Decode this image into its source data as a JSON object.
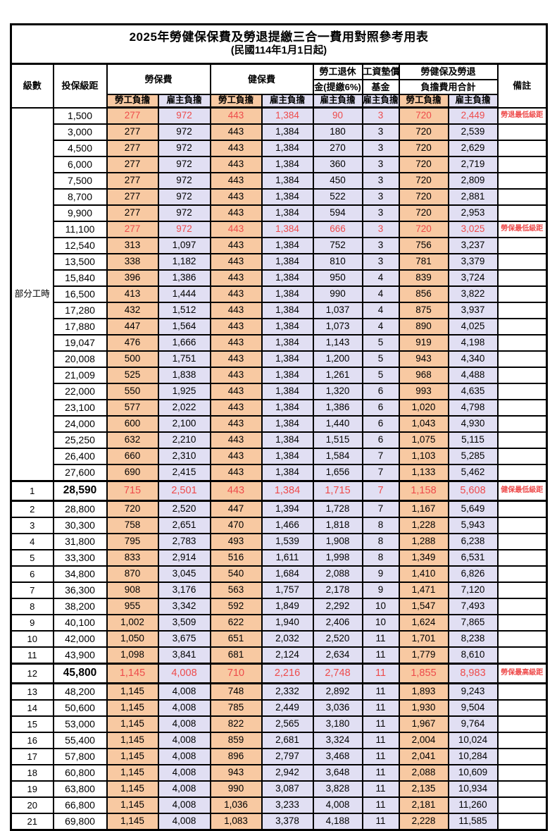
{
  "title": "2025年勞健保保費及勞退提繳三合一費用對照參考用表",
  "subtitle": "(民國114年1月1日起)",
  "colors": {
    "employee_share_bg": "#f8c9a2",
    "employer_share_bg": "#e1dff3",
    "highlight_red": "#ee4b4b",
    "border": "#000000"
  },
  "header": {
    "level": "級數",
    "bracket": "投保級距",
    "labor_insurance": "勞保費",
    "health_insurance": "健保費",
    "pension_line1": "勞工退休",
    "pension_line2": "金(提繳6%)",
    "wage_fund_line1": "工資墊償",
    "wage_fund_line2": "基金",
    "total_line1": "勞健保及勞退",
    "total_line2": "負擔費用合計",
    "remark": "備註",
    "employee_share": "勞工負擔",
    "employer_share": "雇主負擔"
  },
  "part_time": {
    "label": "部分工時",
    "rowspan": 23
  },
  "column_kinds": [
    "emp",
    "er",
    "emp",
    "er",
    "er",
    "er",
    "emp",
    "er"
  ],
  "rows": [
    {
      "lv": "",
      "br": "1,500",
      "c": [
        "277",
        "972",
        "443",
        "1,384",
        "90",
        "3",
        "720",
        "2,449"
      ],
      "rm": "勞退最低級距",
      "hl": true,
      "big": false
    },
    {
      "lv": "",
      "br": "3,000",
      "c": [
        "277",
        "972",
        "443",
        "1,384",
        "180",
        "3",
        "720",
        "2,539"
      ],
      "rm": "",
      "hl": false,
      "big": false
    },
    {
      "lv": "",
      "br": "4,500",
      "c": [
        "277",
        "972",
        "443",
        "1,384",
        "270",
        "3",
        "720",
        "2,629"
      ],
      "rm": "",
      "hl": false,
      "big": false
    },
    {
      "lv": "",
      "br": "6,000",
      "c": [
        "277",
        "972",
        "443",
        "1,384",
        "360",
        "3",
        "720",
        "2,719"
      ],
      "rm": "",
      "hl": false,
      "big": false
    },
    {
      "lv": "",
      "br": "7,500",
      "c": [
        "277",
        "972",
        "443",
        "1,384",
        "450",
        "3",
        "720",
        "2,809"
      ],
      "rm": "",
      "hl": false,
      "big": false
    },
    {
      "lv": "",
      "br": "8,700",
      "c": [
        "277",
        "972",
        "443",
        "1,384",
        "522",
        "3",
        "720",
        "2,881"
      ],
      "rm": "",
      "hl": false,
      "big": false
    },
    {
      "lv": "",
      "br": "9,900",
      "c": [
        "277",
        "972",
        "443",
        "1,384",
        "594",
        "3",
        "720",
        "2,953"
      ],
      "rm": "",
      "hl": false,
      "big": false
    },
    {
      "lv": "",
      "br": "11,100",
      "c": [
        "277",
        "972",
        "443",
        "1,384",
        "666",
        "3",
        "720",
        "3,025"
      ],
      "rm": "勞保最低級距",
      "hl": true,
      "big": false
    },
    {
      "lv": "",
      "br": "12,540",
      "c": [
        "313",
        "1,097",
        "443",
        "1,384",
        "752",
        "3",
        "756",
        "3,237"
      ],
      "rm": "",
      "hl": false,
      "big": false
    },
    {
      "lv": "",
      "br": "13,500",
      "c": [
        "338",
        "1,182",
        "443",
        "1,384",
        "810",
        "3",
        "781",
        "3,379"
      ],
      "rm": "",
      "hl": false,
      "big": false
    },
    {
      "lv": "",
      "br": "15,840",
      "c": [
        "396",
        "1,386",
        "443",
        "1,384",
        "950",
        "4",
        "839",
        "3,724"
      ],
      "rm": "",
      "hl": false,
      "big": false
    },
    {
      "lv": "",
      "br": "16,500",
      "c": [
        "413",
        "1,444",
        "443",
        "1,384",
        "990",
        "4",
        "856",
        "3,822"
      ],
      "rm": "",
      "hl": false,
      "big": false
    },
    {
      "lv": "",
      "br": "17,280",
      "c": [
        "432",
        "1,512",
        "443",
        "1,384",
        "1,037",
        "4",
        "875",
        "3,937"
      ],
      "rm": "",
      "hl": false,
      "big": false
    },
    {
      "lv": "",
      "br": "17,880",
      "c": [
        "447",
        "1,564",
        "443",
        "1,384",
        "1,073",
        "4",
        "890",
        "4,025"
      ],
      "rm": "",
      "hl": false,
      "big": false
    },
    {
      "lv": "",
      "br": "19,047",
      "c": [
        "476",
        "1,666",
        "443",
        "1,384",
        "1,143",
        "5",
        "919",
        "4,198"
      ],
      "rm": "",
      "hl": false,
      "big": false
    },
    {
      "lv": "",
      "br": "20,008",
      "c": [
        "500",
        "1,751",
        "443",
        "1,384",
        "1,200",
        "5",
        "943",
        "4,340"
      ],
      "rm": "",
      "hl": false,
      "big": false
    },
    {
      "lv": "",
      "br": "21,009",
      "c": [
        "525",
        "1,838",
        "443",
        "1,384",
        "1,261",
        "5",
        "968",
        "4,488"
      ],
      "rm": "",
      "hl": false,
      "big": false
    },
    {
      "lv": "",
      "br": "22,000",
      "c": [
        "550",
        "1,925",
        "443",
        "1,384",
        "1,320",
        "6",
        "993",
        "4,635"
      ],
      "rm": "",
      "hl": false,
      "big": false
    },
    {
      "lv": "",
      "br": "23,100",
      "c": [
        "577",
        "2,022",
        "443",
        "1,384",
        "1,386",
        "6",
        "1,020",
        "4,798"
      ],
      "rm": "",
      "hl": false,
      "big": false
    },
    {
      "lv": "",
      "br": "24,000",
      "c": [
        "600",
        "2,100",
        "443",
        "1,384",
        "1,440",
        "6",
        "1,043",
        "4,930"
      ],
      "rm": "",
      "hl": false,
      "big": false
    },
    {
      "lv": "",
      "br": "25,250",
      "c": [
        "632",
        "2,210",
        "443",
        "1,384",
        "1,515",
        "6",
        "1,075",
        "5,115"
      ],
      "rm": "",
      "hl": false,
      "big": false
    },
    {
      "lv": "",
      "br": "26,400",
      "c": [
        "660",
        "2,310",
        "443",
        "1,384",
        "1,584",
        "7",
        "1,103",
        "5,285"
      ],
      "rm": "",
      "hl": false,
      "big": false
    },
    {
      "lv": "",
      "br": "27,600",
      "c": [
        "690",
        "2,415",
        "443",
        "1,384",
        "1,656",
        "7",
        "1,133",
        "5,462"
      ],
      "rm": "",
      "hl": false,
      "big": false
    },
    {
      "lv": "1",
      "br": "28,590",
      "c": [
        "715",
        "2,501",
        "443",
        "1,384",
        "1,715",
        "7",
        "1,158",
        "5,608"
      ],
      "rm": "健保最低級距",
      "hl": true,
      "big": true
    },
    {
      "lv": "2",
      "br": "28,800",
      "c": [
        "720",
        "2,520",
        "447",
        "1,394",
        "1,728",
        "7",
        "1,167",
        "5,649"
      ],
      "rm": "",
      "hl": false,
      "big": false
    },
    {
      "lv": "3",
      "br": "30,300",
      "c": [
        "758",
        "2,651",
        "470",
        "1,466",
        "1,818",
        "8",
        "1,228",
        "5,943"
      ],
      "rm": "",
      "hl": false,
      "big": false
    },
    {
      "lv": "4",
      "br": "31,800",
      "c": [
        "795",
        "2,783",
        "493",
        "1,539",
        "1,908",
        "8",
        "1,288",
        "6,238"
      ],
      "rm": "",
      "hl": false,
      "big": false
    },
    {
      "lv": "5",
      "br": "33,300",
      "c": [
        "833",
        "2,914",
        "516",
        "1,611",
        "1,998",
        "8",
        "1,349",
        "6,531"
      ],
      "rm": "",
      "hl": false,
      "big": false
    },
    {
      "lv": "6",
      "br": "34,800",
      "c": [
        "870",
        "3,045",
        "540",
        "1,684",
        "2,088",
        "9",
        "1,410",
        "6,826"
      ],
      "rm": "",
      "hl": false,
      "big": false
    },
    {
      "lv": "7",
      "br": "36,300",
      "c": [
        "908",
        "3,176",
        "563",
        "1,757",
        "2,178",
        "9",
        "1,471",
        "7,120"
      ],
      "rm": "",
      "hl": false,
      "big": false
    },
    {
      "lv": "8",
      "br": "38,200",
      "c": [
        "955",
        "3,342",
        "592",
        "1,849",
        "2,292",
        "10",
        "1,547",
        "7,493"
      ],
      "rm": "",
      "hl": false,
      "big": false
    },
    {
      "lv": "9",
      "br": "40,100",
      "c": [
        "1,002",
        "3,509",
        "622",
        "1,940",
        "2,406",
        "10",
        "1,624",
        "7,865"
      ],
      "rm": "",
      "hl": false,
      "big": false
    },
    {
      "lv": "10",
      "br": "42,000",
      "c": [
        "1,050",
        "3,675",
        "651",
        "2,032",
        "2,520",
        "11",
        "1,701",
        "8,238"
      ],
      "rm": "",
      "hl": false,
      "big": false
    },
    {
      "lv": "11",
      "br": "43,900",
      "c": [
        "1,098",
        "3,841",
        "681",
        "2,124",
        "2,634",
        "11",
        "1,779",
        "8,610"
      ],
      "rm": "",
      "hl": false,
      "big": false
    },
    {
      "lv": "12",
      "br": "45,800",
      "c": [
        "1,145",
        "4,008",
        "710",
        "2,216",
        "2,748",
        "11",
        "1,855",
        "8,983"
      ],
      "rm": "勞保最高級距",
      "hl": true,
      "big": true
    },
    {
      "lv": "13",
      "br": "48,200",
      "c": [
        "1,145",
        "4,008",
        "748",
        "2,332",
        "2,892",
        "11",
        "1,893",
        "9,243"
      ],
      "rm": "",
      "hl": false,
      "big": false
    },
    {
      "lv": "14",
      "br": "50,600",
      "c": [
        "1,145",
        "4,008",
        "785",
        "2,449",
        "3,036",
        "11",
        "1,930",
        "9,504"
      ],
      "rm": "",
      "hl": false,
      "big": false
    },
    {
      "lv": "15",
      "br": "53,000",
      "c": [
        "1,145",
        "4,008",
        "822",
        "2,565",
        "3,180",
        "11",
        "1,967",
        "9,764"
      ],
      "rm": "",
      "hl": false,
      "big": false
    },
    {
      "lv": "16",
      "br": "55,400",
      "c": [
        "1,145",
        "4,008",
        "859",
        "2,681",
        "3,324",
        "11",
        "2,004",
        "10,024"
      ],
      "rm": "",
      "hl": false,
      "big": false
    },
    {
      "lv": "17",
      "br": "57,800",
      "c": [
        "1,145",
        "4,008",
        "896",
        "2,797",
        "3,468",
        "11",
        "2,041",
        "10,284"
      ],
      "rm": "",
      "hl": false,
      "big": false
    },
    {
      "lv": "18",
      "br": "60,800",
      "c": [
        "1,145",
        "4,008",
        "943",
        "2,942",
        "3,648",
        "11",
        "2,088",
        "10,609"
      ],
      "rm": "",
      "hl": false,
      "big": false
    },
    {
      "lv": "19",
      "br": "63,800",
      "c": [
        "1,145",
        "4,008",
        "990",
        "3,087",
        "3,828",
        "11",
        "2,135",
        "10,934"
      ],
      "rm": "",
      "hl": false,
      "big": false
    },
    {
      "lv": "20",
      "br": "66,800",
      "c": [
        "1,145",
        "4,008",
        "1,036",
        "3,233",
        "4,008",
        "11",
        "2,181",
        "11,260"
      ],
      "rm": "",
      "hl": false,
      "big": false
    },
    {
      "lv": "21",
      "br": "69,800",
      "c": [
        "1,145",
        "4,008",
        "1,083",
        "3,378",
        "4,188",
        "11",
        "2,228",
        "11,585"
      ],
      "rm": "",
      "hl": false,
      "big": false
    }
  ]
}
